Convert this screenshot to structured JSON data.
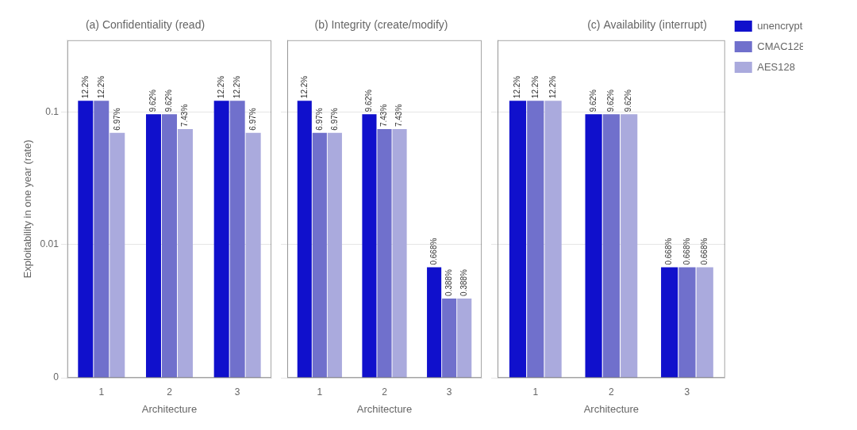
{
  "chart_data": [
    {
      "type": "bar",
      "title": "(a) Confidentiality (read)",
      "xlabel": "Architecture",
      "ylabel": "Exploitability in one year (rate)",
      "categories": [
        1,
        2,
        3
      ],
      "series": [
        {
          "name": "unencrypted",
          "color": "#1010CC",
          "values": [
            0.122,
            0.0962,
            0.122
          ],
          "value_labels": [
            "12.2%",
            "9.62%",
            "12.2%"
          ]
        },
        {
          "name": "CMAC128",
          "color": "#7070CC",
          "values": [
            0.122,
            0.0962,
            0.122
          ],
          "value_labels": [
            "12.2%",
            "9.62%",
            "12.2%"
          ]
        },
        {
          "name": "AES128",
          "color": "#AAAADD",
          "values": [
            0.0697,
            0.0743,
            0.0697
          ],
          "value_labels": [
            "6.97%",
            "7.43%",
            "6.97%"
          ]
        }
      ],
      "ylim": [
        0,
        0.35
      ],
      "yticks": [
        0,
        0.01,
        0.1
      ],
      "log": "y",
      "grid": true,
      "data_labels": true
    },
    {
      "type": "bar",
      "title": "(b) Integrity (create/modify)",
      "xlabel": "Architecture",
      "categories": [
        1,
        2,
        3
      ],
      "series": [
        {
          "name": "unencrypted",
          "color": "#1010CC",
          "values": [
            0.122,
            0.0962,
            0.00668
          ],
          "value_labels": [
            "12.2%",
            "9.62%",
            "0.668%"
          ]
        },
        {
          "name": "CMAC128",
          "color": "#7070CC",
          "values": [
            0.0697,
            0.0743,
            0.00388
          ],
          "value_labels": [
            "6.97%",
            "7.43%",
            "0.388%"
          ]
        },
        {
          "name": "AES128",
          "color": "#AAAADD",
          "values": [
            0.0697,
            0.0743,
            0.00388
          ],
          "value_labels": [
            "6.97%",
            "7.43%",
            "0.388%"
          ]
        }
      ],
      "ylim": [
        0,
        0.35
      ],
      "yticks": [
        0,
        0.01,
        0.1
      ],
      "log": "y",
      "grid": true,
      "data_labels": true,
      "tick_labels": "x"
    },
    {
      "type": "bar",
      "title": "(c) Availability (interrupt)",
      "xlabel": "Architecture",
      "categories": [
        1,
        2,
        3
      ],
      "series": [
        {
          "name": "unencrypted",
          "color": "#1010CC",
          "values": [
            0.122,
            0.0962,
            0.00668
          ],
          "value_labels": [
            "12.2%",
            "9.62%",
            "0.668%"
          ]
        },
        {
          "name": "CMAC128",
          "color": "#7070CC",
          "values": [
            0.122,
            0.0962,
            0.00668
          ],
          "value_labels": [
            "12.2%",
            "9.62%",
            "0.668%"
          ]
        },
        {
          "name": "AES128",
          "color": "#AAAADD",
          "values": [
            0.122,
            0.0962,
            0.00668
          ],
          "value_labels": [
            "12.2%",
            "9.62%",
            "0.668%"
          ]
        }
      ],
      "ylim": [
        0,
        0.35
      ],
      "yticks": [
        0,
        0.01,
        0.1
      ],
      "log": "y",
      "grid": true,
      "data_labels": true,
      "tick_labels": "x",
      "legend": "upper right"
    }
  ]
}
